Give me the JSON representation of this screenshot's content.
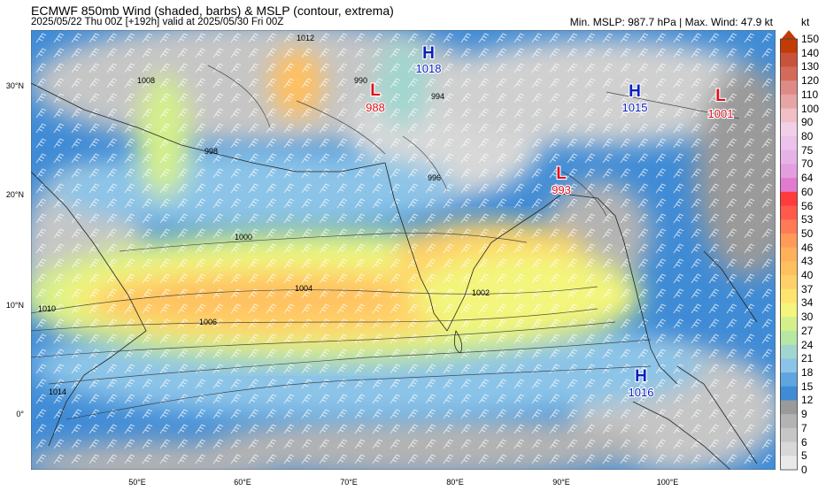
{
  "header": {
    "title": "ECMWF 850mb Wind (shaded, barbs) & MSLP (contour, extrema)",
    "subtitle": "2025/05/22 Thu 00Z [+192h] valid at 2025/05/30 Fri 00Z",
    "stats": "Min. MSLP: 987.7 hPa | Max. Wind: 47.9 kt",
    "unit": "kt"
  },
  "axes": {
    "lat_labels": [
      "30°N",
      "20°N",
      "10°N",
      "0°"
    ],
    "lon_labels": [
      "50°E",
      "60°E",
      "70°E",
      "80°E",
      "90°E",
      "100°E"
    ]
  },
  "colorbar": {
    "ticks": [
      "150",
      "140",
      "130",
      "120",
      "110",
      "100",
      "90",
      "80",
      "75",
      "70",
      "64",
      "60",
      "56",
      "53",
      "50",
      "46",
      "43",
      "40",
      "37",
      "34",
      "30",
      "27",
      "24",
      "21",
      "18",
      "15",
      "12",
      "9",
      "7",
      "6",
      "5",
      "0"
    ],
    "colors": [
      "#c23b06",
      "#c9523a",
      "#d46a5a",
      "#df8a86",
      "#e7a4a4",
      "#f0c0c6",
      "#f1cfe8",
      "#ecc3ec",
      "#e7b3e6",
      "#e39ee0",
      "#e17bd0",
      "#ff3b3b",
      "#ff5a4a",
      "#ff7a55",
      "#ff9a5a",
      "#ffb05a",
      "#ffc060",
      "#ffd168",
      "#ffe46f",
      "#f3f57c",
      "#d4f08a",
      "#b6e8a4",
      "#a1d6cf",
      "#8cc4e8",
      "#5fa6e0",
      "#3f8bd6",
      "#9a9a9a",
      "#b3b3b3",
      "#c6c6c6",
      "#d8d8d8",
      "#e9e9e9",
      "#ffffff"
    ]
  },
  "pressure_centers": [
    {
      "type": "H",
      "value": "1018"
    },
    {
      "type": "L",
      "value": "988"
    },
    {
      "type": "L",
      "value": "993"
    },
    {
      "type": "H",
      "value": "1015"
    },
    {
      "type": "L",
      "value": "1001"
    },
    {
      "type": "H",
      "value": "1016"
    }
  ],
  "isobar_labels": [
    "1012",
    "1008",
    "1006",
    "1004",
    "1002",
    "1000",
    "998",
    "996",
    "1010",
    "1014",
    "990",
    "994"
  ],
  "colors": {
    "high": "#0a1fbf",
    "low": "#e0101e"
  }
}
